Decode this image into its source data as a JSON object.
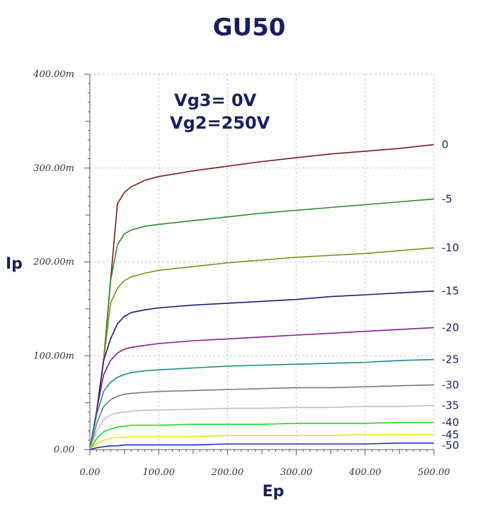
{
  "chart_data": {
    "type": "line",
    "title": "GU50",
    "xlabel": "Ep",
    "ylabel": "Ip",
    "xlim": [
      0,
      500
    ],
    "ylim": [
      0,
      400
    ],
    "x_ticks": [
      0,
      100,
      200,
      300,
      400,
      500
    ],
    "x_tick_labels": [
      "0.00",
      "100.00",
      "200.00",
      "300.00",
      "400.00",
      "500.00"
    ],
    "y_ticks": [
      0,
      100,
      200,
      300,
      400
    ],
    "y_tick_labels": [
      "0.00",
      "100.00m",
      "200.00m",
      "300.00m",
      "400.00m"
    ],
    "grid": true,
    "annotations": [
      "Vg3=    0V",
      "Vg2=250V"
    ],
    "x": [
      0,
      10,
      20,
      30,
      40,
      50,
      60,
      80,
      100,
      150,
      200,
      250,
      300,
      350,
      400,
      450,
      500
    ],
    "series": [
      {
        "name": "0",
        "color": "#7b1a1a",
        "values": [
          0,
          42,
          95,
          180,
          262,
          274,
          280,
          287,
          291,
          297,
          302,
          307,
          311,
          315,
          318,
          321,
          325
        ]
      },
      {
        "name": "-5",
        "color": "#2a8a2a",
        "values": [
          0,
          42,
          95,
          180,
          218,
          230,
          234,
          238,
          240,
          244,
          248,
          252,
          255,
          258,
          261,
          264,
          267
        ]
      },
      {
        "name": "-10",
        "color": "#8a8a1e",
        "values": [
          0,
          42,
          95,
          156,
          172,
          180,
          184,
          188,
          191,
          195,
          199,
          202,
          205,
          207,
          209,
          212,
          215
        ]
      },
      {
        "name": "-15",
        "color": "#1a1a7a",
        "values": [
          0,
          42,
          95,
          118,
          134,
          142,
          146,
          149,
          151,
          154,
          156,
          158,
          160,
          163,
          165,
          167,
          169
        ]
      },
      {
        "name": "-20",
        "color": "#8a1a8a",
        "values": [
          0,
          42,
          80,
          95,
          103,
          107,
          109,
          111,
          113,
          116,
          118,
          120,
          122,
          124,
          126,
          128,
          130
        ]
      },
      {
        "name": "-25",
        "color": "#1a8a8a",
        "values": [
          0,
          38,
          62,
          72,
          77,
          80,
          82,
          84,
          85,
          87,
          89,
          90,
          91,
          92,
          93,
          95,
          96
        ]
      },
      {
        "name": "-30",
        "color": "#7a7a7a",
        "values": [
          0,
          28,
          46,
          53,
          57,
          59,
          60,
          61,
          62,
          63,
          64,
          65,
          66,
          66,
          67,
          68,
          69
        ]
      },
      {
        "name": "-35",
        "color": "#bfbfbf",
        "values": [
          0,
          20,
          32,
          37,
          39,
          40,
          41,
          42,
          42,
          43,
          44,
          44,
          45,
          45,
          46,
          46,
          47
        ]
      },
      {
        "name": "-40",
        "color": "#22d822",
        "values": [
          0,
          12,
          19,
          22,
          24,
          25,
          26,
          26,
          26,
          27,
          27,
          27,
          28,
          28,
          28,
          29,
          29
        ]
      },
      {
        "name": "-45",
        "color": "#e8e820",
        "values": [
          0,
          6,
          10,
          12,
          13,
          13,
          14,
          14,
          14,
          14,
          15,
          15,
          15,
          15,
          16,
          16,
          16
        ]
      },
      {
        "name": "-50",
        "color": "#1a2ad8",
        "values": [
          0,
          2,
          3,
          4,
          4,
          5,
          5,
          5,
          5,
          5,
          6,
          6,
          6,
          6,
          6,
          7,
          7
        ]
      }
    ]
  }
}
